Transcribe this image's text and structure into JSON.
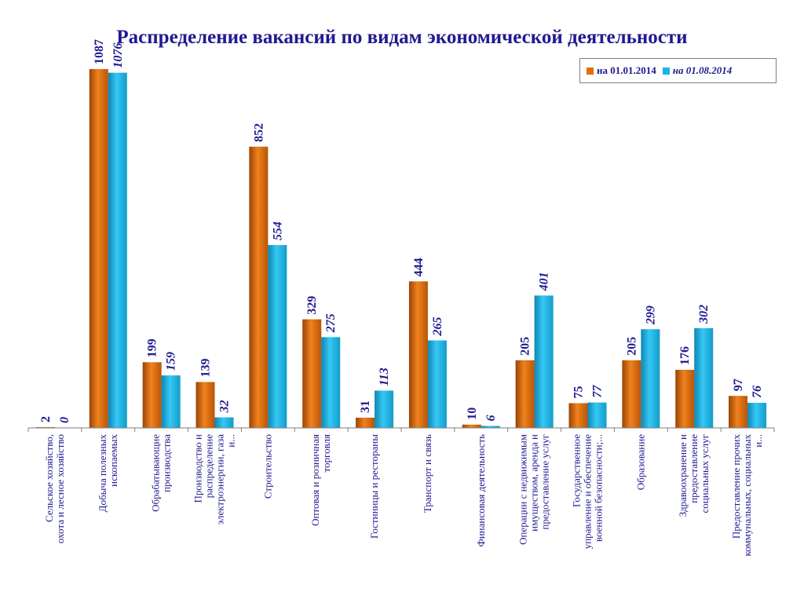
{
  "chart_data": {
    "type": "bar",
    "title": "Распределение вакансий  по видам экономической деятельности",
    "categories": [
      "Сельское хозяйство, охота и лесное хозяйство",
      "Добыча полезных ископаемых",
      "Обрабатывающие производства",
      "Производство и распределение электроэнергии, газа и...",
      "Строительство",
      "Оптовая и розничная торговля",
      "Гостиницы и рестораны",
      "Транспорт и связь",
      "Финансовая деятельность",
      "Операции с недвижимым имуществом, аренда и предоставление услуг",
      "Государственное управление и обеспечение военной безопасности;...",
      "Образование",
      "Здравоохранение и предоставление социальных услуг",
      "Предоставление прочих коммунальных, социальных и..."
    ],
    "series": [
      {
        "name": "на 01.01.2014",
        "color": "#e36c09",
        "values": [
          2,
          1087,
          199,
          139,
          852,
          329,
          31,
          444,
          10,
          205,
          75,
          205,
          176,
          97
        ]
      },
      {
        "name": "на 01.08.2014",
        "color": "#1cb5e8",
        "values": [
          0,
          1076,
          159,
          32,
          554,
          275,
          113,
          265,
          6,
          401,
          77,
          299,
          302,
          76
        ]
      }
    ],
    "ylim": [
      0,
      1087
    ],
    "grid": false,
    "legend": "top-right",
    "label_color": "#1f1a8f"
  }
}
